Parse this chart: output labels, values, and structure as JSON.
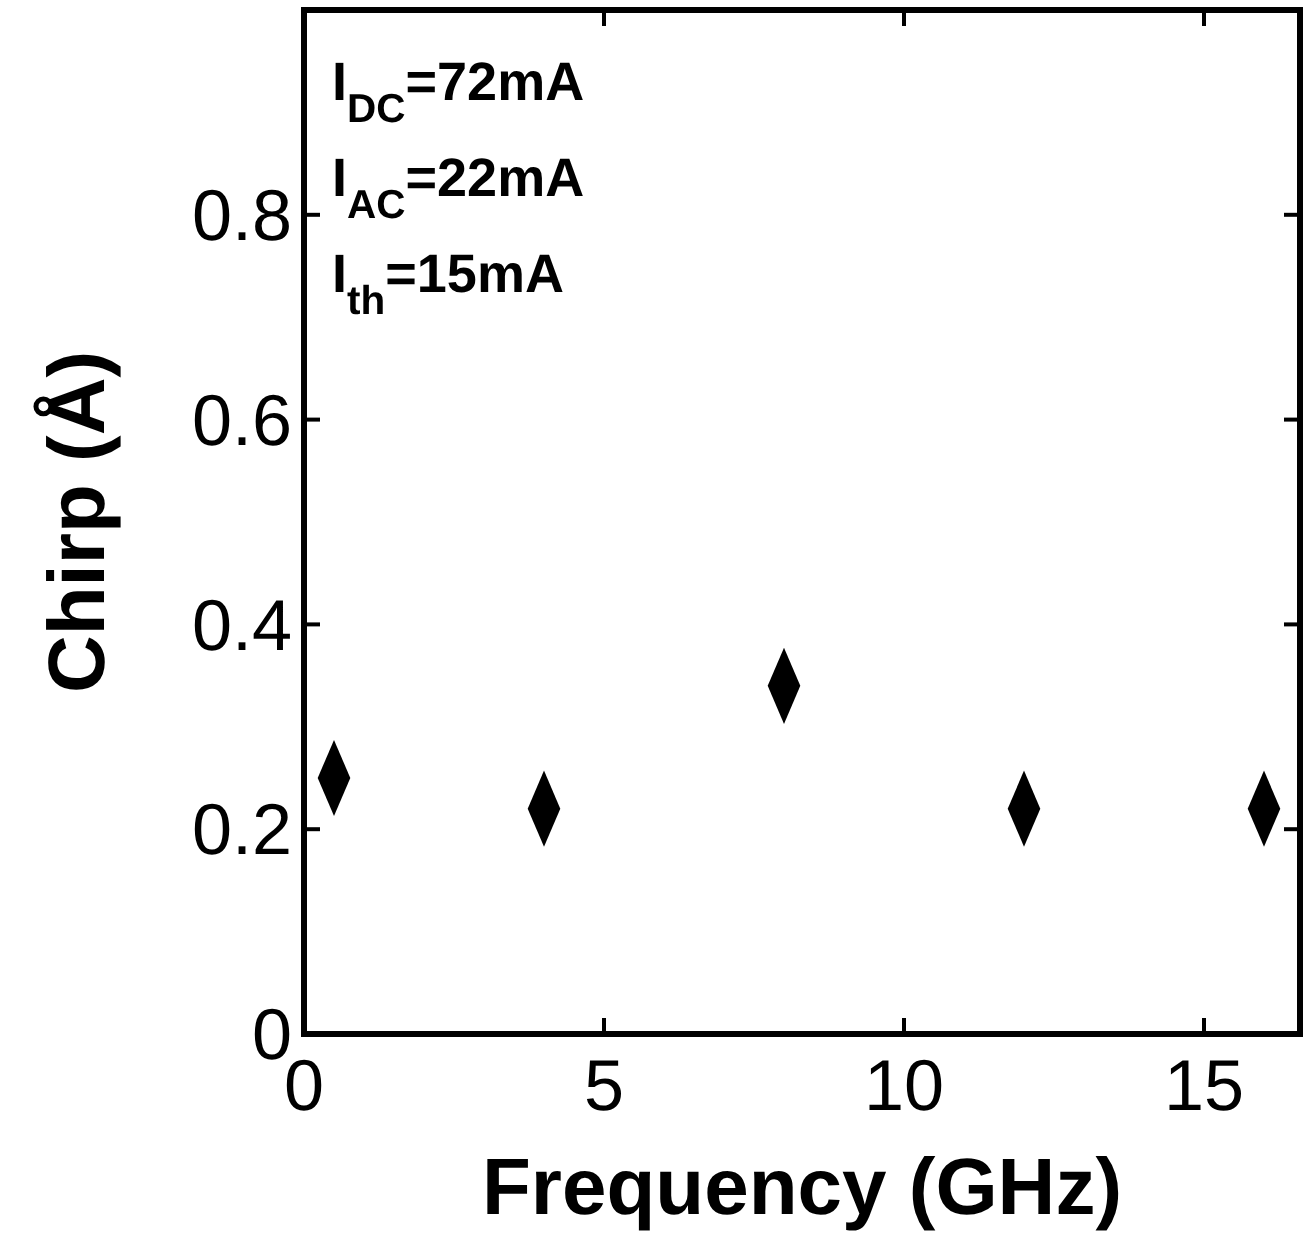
{
  "chart_data": {
    "type": "scatter",
    "xlabel": "Frequency (GHz)",
    "ylabel": "Chirp (Å)",
    "x": [
      0.5,
      4,
      8,
      12,
      16
    ],
    "values": [
      0.25,
      0.22,
      0.34,
      0.22,
      0.22
    ],
    "color": "#000000",
    "marker": "diamond",
    "xlim": [
      0,
      16.6
    ],
    "ylim": [
      0,
      1
    ],
    "xticks": [
      0,
      5,
      10,
      15
    ],
    "yticks": [
      0,
      0.2,
      0.4,
      0.6,
      0.8
    ],
    "grid": false,
    "annotations": [
      "I$_{DC}$=72mA",
      "I$_{AC}$=22mA",
      "I$_{th}$=15mA"
    ]
  }
}
